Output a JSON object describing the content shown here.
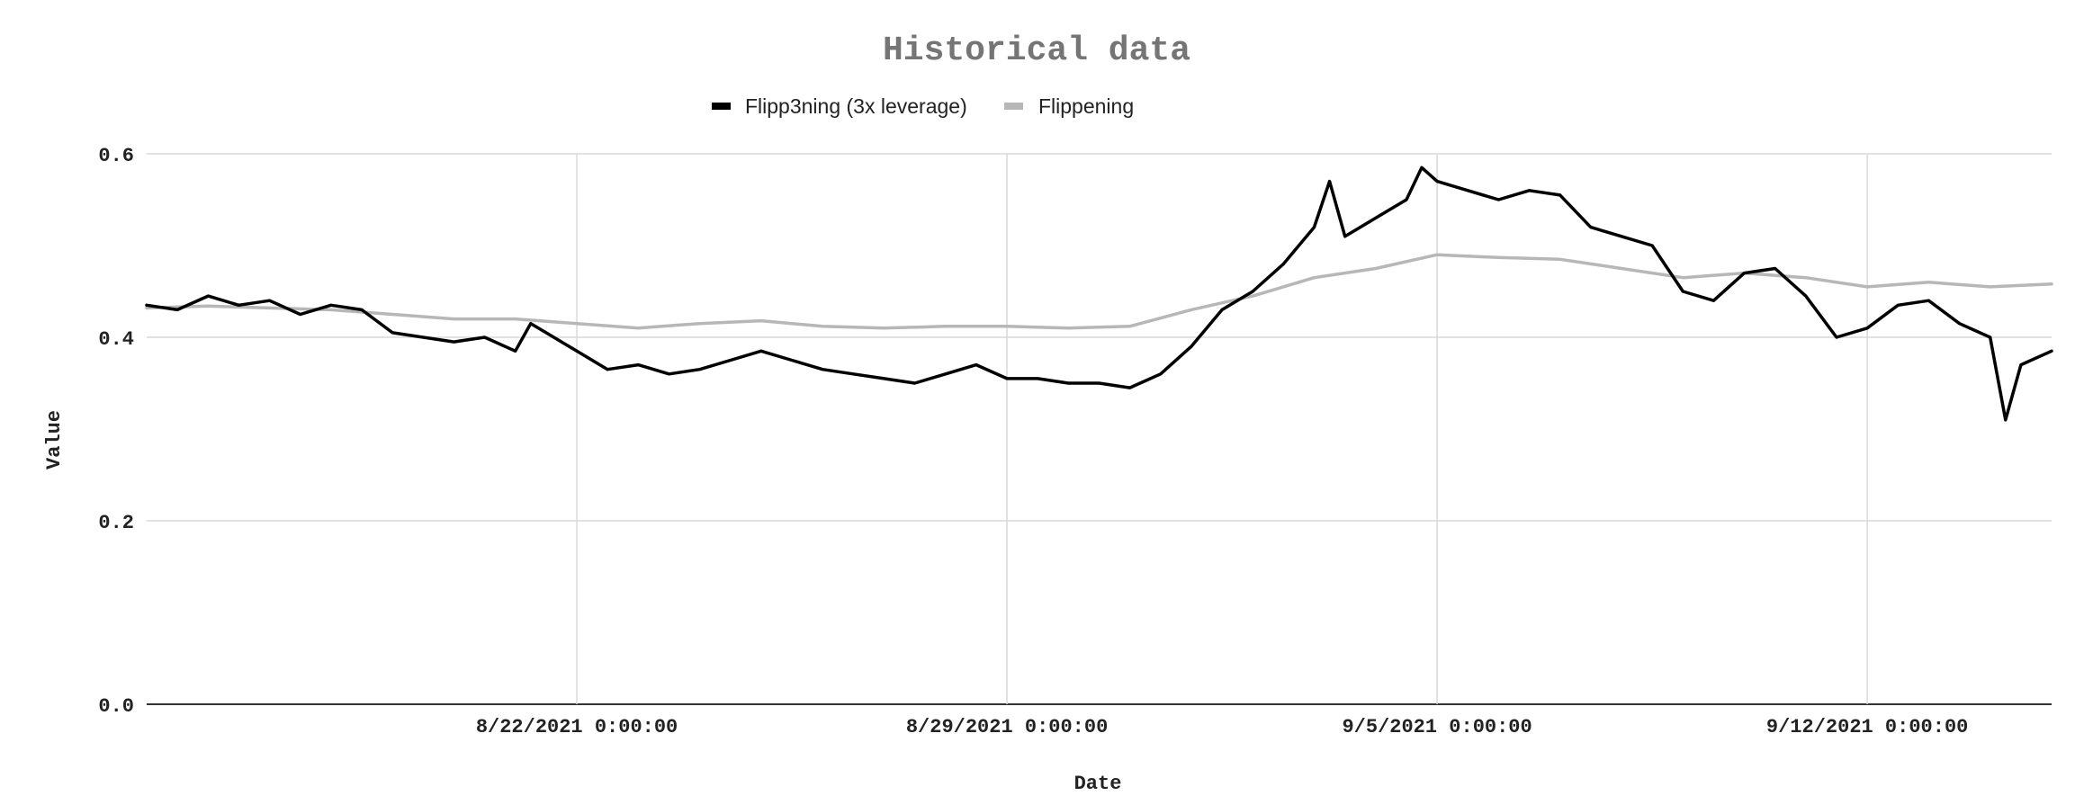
{
  "chart_data": {
    "type": "line",
    "title": "Historical data",
    "xlabel": "Date",
    "ylabel": "Value",
    "ylim": [
      0.0,
      0.6
    ],
    "yticks": [
      "0.0",
      "0.2",
      "0.4",
      "0.6"
    ],
    "xlim": [
      "2021-08-15",
      "2021-09-15"
    ],
    "xtick_labels": [
      "8/22/2021 0:00:00",
      "8/29/2021 0:00:00",
      "9/5/2021 0:00:00",
      "9/12/2021 0:00:00"
    ],
    "xtick_dates": [
      "2021-08-22",
      "2021-08-29",
      "2021-09-05",
      "2021-09-12"
    ],
    "grid": true,
    "legend_position": "top",
    "series": [
      {
        "name": "Flipp3ning (3x leverage)",
        "color": "#000000",
        "points": [
          [
            "2021-08-15T00:00",
            0.435
          ],
          [
            "2021-08-15T12:00",
            0.43
          ],
          [
            "2021-08-16T00:00",
            0.445
          ],
          [
            "2021-08-16T12:00",
            0.435
          ],
          [
            "2021-08-17T00:00",
            0.44
          ],
          [
            "2021-08-17T12:00",
            0.425
          ],
          [
            "2021-08-18T00:00",
            0.435
          ],
          [
            "2021-08-18T12:00",
            0.43
          ],
          [
            "2021-08-19T00:00",
            0.405
          ],
          [
            "2021-08-19T12:00",
            0.4
          ],
          [
            "2021-08-20T00:00",
            0.395
          ],
          [
            "2021-08-20T12:00",
            0.4
          ],
          [
            "2021-08-21T00:00",
            0.385
          ],
          [
            "2021-08-21T06:00",
            0.415
          ],
          [
            "2021-08-21T12:00",
            0.405
          ],
          [
            "2021-08-22T00:00",
            0.385
          ],
          [
            "2021-08-22T12:00",
            0.365
          ],
          [
            "2021-08-23T00:00",
            0.37
          ],
          [
            "2021-08-23T12:00",
            0.36
          ],
          [
            "2021-08-24T00:00",
            0.365
          ],
          [
            "2021-08-24T12:00",
            0.375
          ],
          [
            "2021-08-25T00:00",
            0.385
          ],
          [
            "2021-08-25T12:00",
            0.375
          ],
          [
            "2021-08-26T00:00",
            0.365
          ],
          [
            "2021-08-26T12:00",
            0.36
          ],
          [
            "2021-08-27T00:00",
            0.355
          ],
          [
            "2021-08-27T12:00",
            0.35
          ],
          [
            "2021-08-28T00:00",
            0.36
          ],
          [
            "2021-08-28T12:00",
            0.37
          ],
          [
            "2021-08-29T00:00",
            0.355
          ],
          [
            "2021-08-29T12:00",
            0.355
          ],
          [
            "2021-08-30T00:00",
            0.35
          ],
          [
            "2021-08-30T12:00",
            0.35
          ],
          [
            "2021-08-31T00:00",
            0.345
          ],
          [
            "2021-08-31T12:00",
            0.36
          ],
          [
            "2021-09-01T00:00",
            0.39
          ],
          [
            "2021-09-01T12:00",
            0.43
          ],
          [
            "2021-09-02T00:00",
            0.45
          ],
          [
            "2021-09-02T12:00",
            0.48
          ],
          [
            "2021-09-03T00:00",
            0.52
          ],
          [
            "2021-09-03T06:00",
            0.57
          ],
          [
            "2021-09-03T12:00",
            0.51
          ],
          [
            "2021-09-04T00:00",
            0.53
          ],
          [
            "2021-09-04T12:00",
            0.55
          ],
          [
            "2021-09-04T18:00",
            0.585
          ],
          [
            "2021-09-05T00:00",
            0.57
          ],
          [
            "2021-09-05T12:00",
            0.56
          ],
          [
            "2021-09-06T00:00",
            0.55
          ],
          [
            "2021-09-06T12:00",
            0.56
          ],
          [
            "2021-09-07T00:00",
            0.555
          ],
          [
            "2021-09-07T12:00",
            0.52
          ],
          [
            "2021-09-08T00:00",
            0.51
          ],
          [
            "2021-09-08T12:00",
            0.5
          ],
          [
            "2021-09-09T00:00",
            0.45
          ],
          [
            "2021-09-09T12:00",
            0.44
          ],
          [
            "2021-09-10T00:00",
            0.47
          ],
          [
            "2021-09-10T12:00",
            0.475
          ],
          [
            "2021-09-11T00:00",
            0.445
          ],
          [
            "2021-09-11T12:00",
            0.4
          ],
          [
            "2021-09-12T00:00",
            0.41
          ],
          [
            "2021-09-12T12:00",
            0.435
          ],
          [
            "2021-09-13T00:00",
            0.44
          ],
          [
            "2021-09-13T12:00",
            0.415
          ],
          [
            "2021-09-14T00:00",
            0.4
          ],
          [
            "2021-09-14T06:00",
            0.31
          ],
          [
            "2021-09-14T12:00",
            0.37
          ],
          [
            "2021-09-15T00:00",
            0.385
          ]
        ]
      },
      {
        "name": "Flippening",
        "color": "#b7b7b7",
        "points": [
          [
            "2021-08-15T00:00",
            0.432
          ],
          [
            "2021-08-16T00:00",
            0.434
          ],
          [
            "2021-08-17T00:00",
            0.432
          ],
          [
            "2021-08-18T00:00",
            0.43
          ],
          [
            "2021-08-19T00:00",
            0.425
          ],
          [
            "2021-08-20T00:00",
            0.42
          ],
          [
            "2021-08-21T00:00",
            0.42
          ],
          [
            "2021-08-22T00:00",
            0.415
          ],
          [
            "2021-08-23T00:00",
            0.41
          ],
          [
            "2021-08-24T00:00",
            0.415
          ],
          [
            "2021-08-25T00:00",
            0.418
          ],
          [
            "2021-08-26T00:00",
            0.412
          ],
          [
            "2021-08-27T00:00",
            0.41
          ],
          [
            "2021-08-28T00:00",
            0.412
          ],
          [
            "2021-08-29T00:00",
            0.412
          ],
          [
            "2021-08-30T00:00",
            0.41
          ],
          [
            "2021-08-31T00:00",
            0.412
          ],
          [
            "2021-09-01T00:00",
            0.43
          ],
          [
            "2021-09-02T00:00",
            0.445
          ],
          [
            "2021-09-03T00:00",
            0.465
          ],
          [
            "2021-09-04T00:00",
            0.475
          ],
          [
            "2021-09-05T00:00",
            0.49
          ],
          [
            "2021-09-06T00:00",
            0.487
          ],
          [
            "2021-09-07T00:00",
            0.485
          ],
          [
            "2021-09-08T00:00",
            0.475
          ],
          [
            "2021-09-09T00:00",
            0.465
          ],
          [
            "2021-09-10T00:00",
            0.47
          ],
          [
            "2021-09-11T00:00",
            0.465
          ],
          [
            "2021-09-12T00:00",
            0.455
          ],
          [
            "2021-09-13T00:00",
            0.46
          ],
          [
            "2021-09-14T00:00",
            0.455
          ],
          [
            "2021-09-15T00:00",
            0.458
          ]
        ]
      }
    ]
  },
  "colors": {
    "grid": "#d9d9d9",
    "axis": "#333333",
    "title": "#757575"
  }
}
